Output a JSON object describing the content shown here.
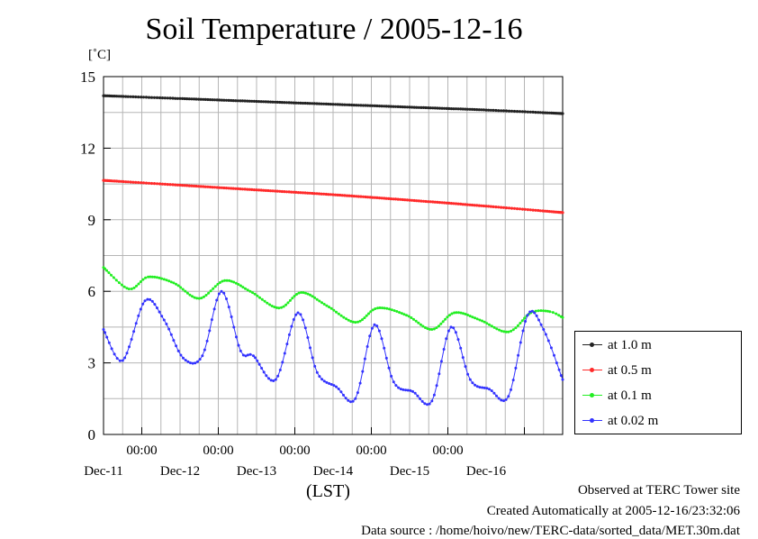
{
  "title": "Soil Temperature / 2005-12-16",
  "unit_label": "[˚C]",
  "x_axis_name": "(LST)",
  "footer": {
    "line1": "Observed at TERC Tower site",
    "line2": "Created Automatically at 2005-12-16/23:32:06",
    "line3": "Data source : /home/hoivo/new/TERC-data/sorted_data/MET.30m.dat"
  },
  "chart_data": {
    "type": "line",
    "title": "Soil Temperature / 2005-12-16",
    "ylabel": "[˚C]",
    "xlabel": "(LST)",
    "ylim": [
      0,
      15
    ],
    "y_ticks": [
      "0",
      "3",
      "6",
      "9",
      "12",
      "15"
    ],
    "xlim": [
      "2005-12-10 12:00",
      "2005-12-16 12:00"
    ],
    "x_time_ticks": [
      "00:00",
      "00:00",
      "00:00",
      "00:00",
      "00:00"
    ],
    "x_date_labels": [
      "Dec-11",
      "Dec-12",
      "Dec-13",
      "Dec-14",
      "Dec-15",
      "Dec-16"
    ],
    "grid": true,
    "legend_position": "right",
    "series": [
      {
        "name": "at 1.0 m",
        "color": "#222222",
        "x": [
          "2005-12-10 12:00",
          "2005-12-11 12:00",
          "2005-12-12 12:00",
          "2005-12-13 12:00",
          "2005-12-14 12:00",
          "2005-12-15 12:00",
          "2005-12-16 12:00"
        ],
        "y": [
          14.2,
          14.08,
          13.96,
          13.84,
          13.72,
          13.6,
          13.45
        ]
      },
      {
        "name": "at 0.5 m",
        "color": "#ff2a2a",
        "x": [
          "2005-12-10 12:00",
          "2005-12-11 12:00",
          "2005-12-12 12:00",
          "2005-12-13 12:00",
          "2005-12-14 12:00",
          "2005-12-15 12:00",
          "2005-12-16 12:00"
        ],
        "y": [
          10.65,
          10.45,
          10.25,
          10.05,
          9.82,
          9.57,
          9.3
        ]
      },
      {
        "name": "at 0.1 m",
        "color": "#22ee22",
        "x": [
          "2005-12-10 12:00",
          "2005-12-10 20:00",
          "2005-12-11 02:00",
          "2005-12-11 10:00",
          "2005-12-11 18:00",
          "2005-12-12 02:00",
          "2005-12-12 10:00",
          "2005-12-12 19:00",
          "2005-12-13 02:00",
          "2005-12-13 10:00",
          "2005-12-13 19:00",
          "2005-12-14 02:00",
          "2005-12-14 11:00",
          "2005-12-14 19:00",
          "2005-12-15 02:00",
          "2005-12-15 10:00",
          "2005-12-15 19:00",
          "2005-12-16 02:00",
          "2005-12-16 08:00",
          "2005-12-16 12:00"
        ],
        "y": [
          7.0,
          6.1,
          6.6,
          6.35,
          5.7,
          6.45,
          6.0,
          5.3,
          5.95,
          5.4,
          4.7,
          5.3,
          5.0,
          4.4,
          5.1,
          4.8,
          4.3,
          5.1,
          5.15,
          4.9
        ]
      },
      {
        "name": "at 0.02 m",
        "color": "#3333ff",
        "x": [
          "2005-12-10 12:00",
          "2005-12-10 18:00",
          "2005-12-11 01:00",
          "2005-12-11 07:00",
          "2005-12-11 13:00",
          "2005-12-11 19:00",
          "2005-12-12 01:00",
          "2005-12-12 07:00",
          "2005-12-12 11:00",
          "2005-12-12 18:00",
          "2005-12-13 01:00",
          "2005-12-13 07:00",
          "2005-12-13 13:00",
          "2005-12-13 19:00",
          "2005-12-14 01:00",
          "2005-12-14 07:00",
          "2005-12-14 13:00",
          "2005-12-14 19:00",
          "2005-12-15 01:00",
          "2005-12-15 07:00",
          "2005-12-15 13:00",
          "2005-12-15 19:00",
          "2005-12-16 01:00",
          "2005-12-16 06:00",
          "2005-12-16 12:00"
        ],
        "y": [
          4.4,
          3.1,
          5.6,
          4.8,
          3.2,
          3.3,
          6.0,
          3.5,
          3.3,
          2.3,
          5.1,
          2.6,
          2.0,
          1.5,
          4.6,
          2.2,
          1.8,
          1.4,
          4.5,
          2.3,
          1.9,
          1.6,
          5.0,
          4.4,
          2.3
        ]
      }
    ]
  }
}
